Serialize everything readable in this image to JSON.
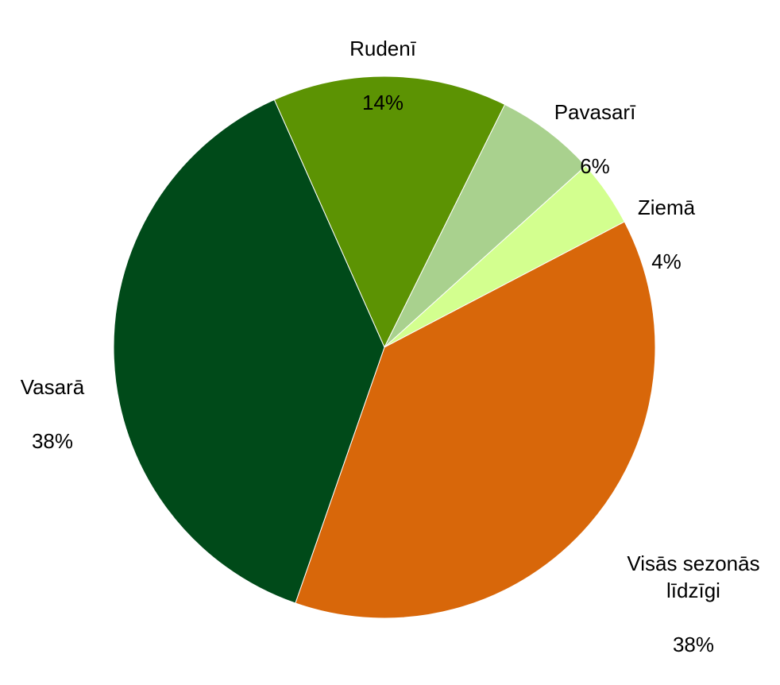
{
  "chart_data": {
    "type": "pie",
    "start_angle_deg": -114,
    "direction": "clockwise",
    "slices": [
      {
        "label": "Rudenī",
        "value": 14,
        "value_label": "14%",
        "color": "#5c9303"
      },
      {
        "label": "Pavasarī",
        "value": 6,
        "value_label": "6%",
        "color": "#a9d18e"
      },
      {
        "label": "Ziemā",
        "value": 4,
        "value_label": "4%",
        "color": "#d3ff8f"
      },
      {
        "label": "Visās sezonās līdzīgi",
        "value": 38,
        "value_label": "38%",
        "color": "#d8670a"
      },
      {
        "label": "Vasarā",
        "value": 38,
        "value_label": "38%",
        "color": "#004a19"
      }
    ]
  }
}
